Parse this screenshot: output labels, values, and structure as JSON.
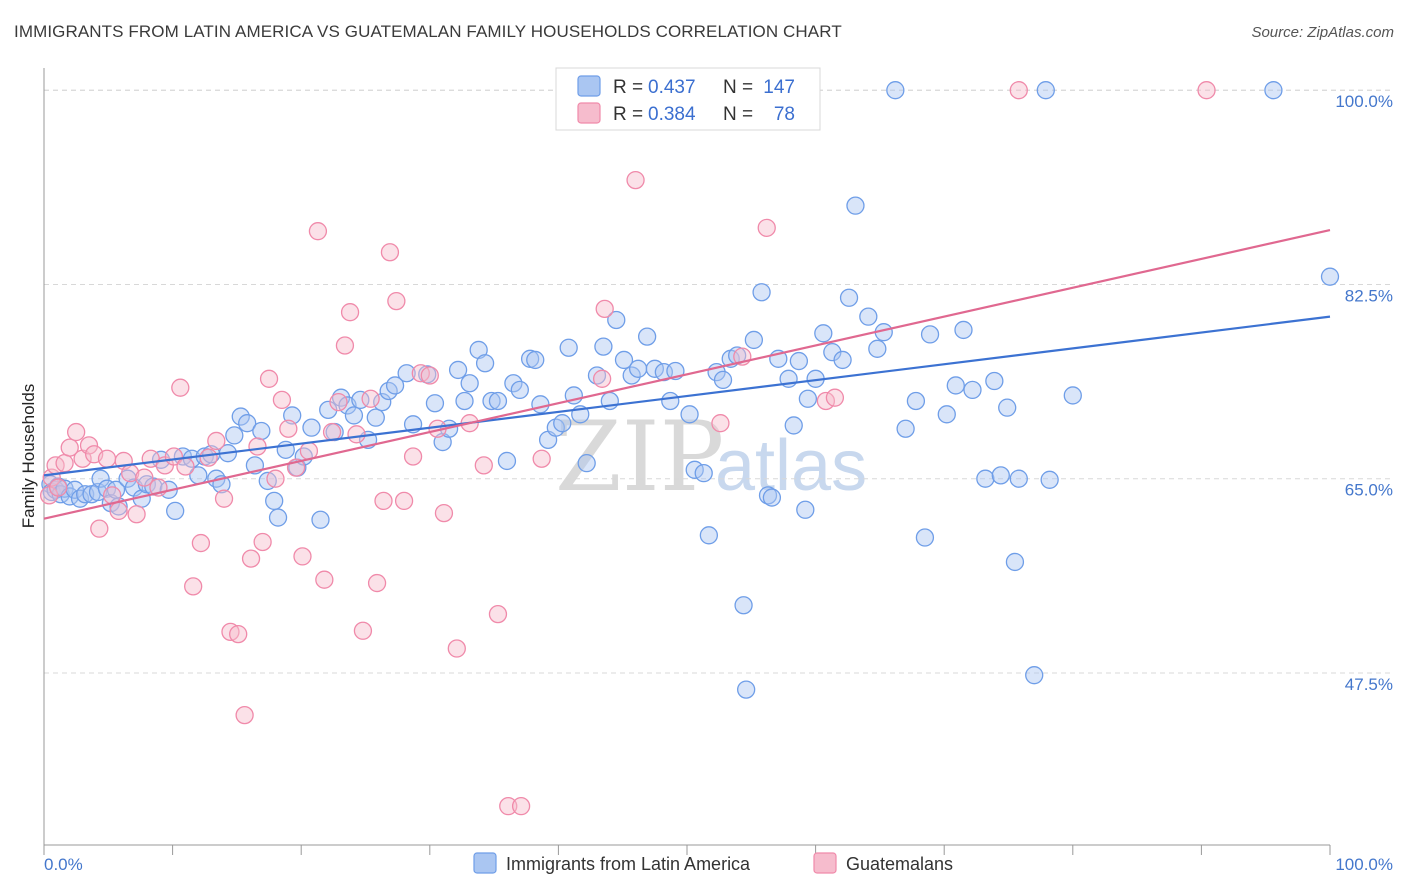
{
  "title": "IMMIGRANTS FROM LATIN AMERICA VS GUATEMALAN FAMILY HOUSEHOLDS CORRELATION CHART",
  "source": "Source: ZipAtlas.com",
  "colors": {
    "blue": "#6f9ee8",
    "blue_fill": "#aac6f2",
    "blue_line": "#3c72d2",
    "pink": "#f08aaa",
    "pink_fill": "#f6bccd",
    "pink_line": "#e06890",
    "tick_text": "#4477cc",
    "grid": "#d8d8d8"
  },
  "legend": {
    "r_label": "R =",
    "n_label": "N =",
    "rows": [
      {
        "series": "blue",
        "r": "0.437",
        "n": "147"
      },
      {
        "series": "pink",
        "r": "0.384",
        "n": "78"
      }
    ]
  },
  "watermark": {
    "zip": "ZIP",
    "atlas": "atlas"
  },
  "chart_data": {
    "type": "scatter",
    "title": "IMMIGRANTS FROM LATIN AMERICA VS GUATEMALAN FAMILY HOUSEHOLDS CORRELATION CHART",
    "xlabel": "",
    "ylabel": "Family Households",
    "xlim": [
      0,
      100
    ],
    "ylim": [
      32,
      102
    ],
    "x_tick_labels": [
      "0.0%",
      "100.0%"
    ],
    "y_ticks": [
      47.5,
      65.0,
      82.5,
      100.0
    ],
    "y_tick_labels": [
      "47.5%",
      "65.0%",
      "82.5%",
      "100.0%"
    ],
    "grid": "horizontal-dashed",
    "legend_placement": "top-center",
    "series": [
      {
        "name": "Immigrants from Latin America",
        "color": "blue",
        "r": 0.437,
        "n": 147,
        "trend": {
          "x": [
            0,
            100
          ],
          "y": [
            65.3,
            79.6
          ]
        },
        "points": [
          [
            0.5,
            64.5
          ],
          [
            0.6,
            63.8
          ],
          [
            0.9,
            64.0
          ],
          [
            1.1,
            64.3
          ],
          [
            1.3,
            63.6
          ],
          [
            1.6,
            64.1
          ],
          [
            2.0,
            63.4
          ],
          [
            2.4,
            64.0
          ],
          [
            2.8,
            63.2
          ],
          [
            3.2,
            63.6
          ],
          [
            3.7,
            63.6
          ],
          [
            4.2,
            63.8
          ],
          [
            4.4,
            65.0
          ],
          [
            4.9,
            64.1
          ],
          [
            5.2,
            62.8
          ],
          [
            5.6,
            64.0
          ],
          [
            5.8,
            62.5
          ],
          [
            6.5,
            65.0
          ],
          [
            7.0,
            64.2
          ],
          [
            7.6,
            63.2
          ],
          [
            8.0,
            64.5
          ],
          [
            8.5,
            64.3
          ],
          [
            9.1,
            66.7
          ],
          [
            9.7,
            64.0
          ],
          [
            10.2,
            62.1
          ],
          [
            10.8,
            67.0
          ],
          [
            11.5,
            66.8
          ],
          [
            12.0,
            65.3
          ],
          [
            12.5,
            67.0
          ],
          [
            13.0,
            67.2
          ],
          [
            13.4,
            65.0
          ],
          [
            13.8,
            64.5
          ],
          [
            14.3,
            67.3
          ],
          [
            14.8,
            68.9
          ],
          [
            15.3,
            70.6
          ],
          [
            15.8,
            70.0
          ],
          [
            16.4,
            66.2
          ],
          [
            16.9,
            69.3
          ],
          [
            17.4,
            64.8
          ],
          [
            17.9,
            63.0
          ],
          [
            18.2,
            61.5
          ],
          [
            18.8,
            67.6
          ],
          [
            19.3,
            70.7
          ],
          [
            19.7,
            66.0
          ],
          [
            20.2,
            67.0
          ],
          [
            20.8,
            69.6
          ],
          [
            21.5,
            61.3
          ],
          [
            22.1,
            71.2
          ],
          [
            22.6,
            69.2
          ],
          [
            23.1,
            72.3
          ],
          [
            23.6,
            71.6
          ],
          [
            24.1,
            70.7
          ],
          [
            24.6,
            72.1
          ],
          [
            25.2,
            68.5
          ],
          [
            25.8,
            70.5
          ],
          [
            26.3,
            71.9
          ],
          [
            26.8,
            72.9
          ],
          [
            27.3,
            73.4
          ],
          [
            28.2,
            74.5
          ],
          [
            28.7,
            69.9
          ],
          [
            29.8,
            74.4
          ],
          [
            30.4,
            71.8
          ],
          [
            31.0,
            68.3
          ],
          [
            31.5,
            69.5
          ],
          [
            32.2,
            74.8
          ],
          [
            32.7,
            72.0
          ],
          [
            33.1,
            73.6
          ],
          [
            33.8,
            76.6
          ],
          [
            34.3,
            75.4
          ],
          [
            34.8,
            72.0
          ],
          [
            35.3,
            72.0
          ],
          [
            36.0,
            66.6
          ],
          [
            36.5,
            73.6
          ],
          [
            37.0,
            73.0
          ],
          [
            37.8,
            75.8
          ],
          [
            38.2,
            75.7
          ],
          [
            38.6,
            71.7
          ],
          [
            39.2,
            68.5
          ],
          [
            39.8,
            69.6
          ],
          [
            40.3,
            70.0
          ],
          [
            40.8,
            76.8
          ],
          [
            41.2,
            72.5
          ],
          [
            41.7,
            70.8
          ],
          [
            42.2,
            66.4
          ],
          [
            43.0,
            74.3
          ],
          [
            43.5,
            76.9
          ],
          [
            44.0,
            72.0
          ],
          [
            44.5,
            79.3
          ],
          [
            45.1,
            75.7
          ],
          [
            45.7,
            74.3
          ],
          [
            46.2,
            74.9
          ],
          [
            46.9,
            77.8
          ],
          [
            47.5,
            74.9
          ],
          [
            48.2,
            74.6
          ],
          [
            48.7,
            72.0
          ],
          [
            49.1,
            74.7
          ],
          [
            50.2,
            70.8
          ],
          [
            50.6,
            65.8
          ],
          [
            51.3,
            65.5
          ],
          [
            51.7,
            59.9
          ],
          [
            52.3,
            74.6
          ],
          [
            52.8,
            73.9
          ],
          [
            53.4,
            75.8
          ],
          [
            53.9,
            76.1
          ],
          [
            54.4,
            53.6
          ],
          [
            54.6,
            46.0
          ],
          [
            55.2,
            77.5
          ],
          [
            55.8,
            81.8
          ],
          [
            56.3,
            63.5
          ],
          [
            56.6,
            63.3
          ],
          [
            57.1,
            75.8
          ],
          [
            57.9,
            74.0
          ],
          [
            58.3,
            69.8
          ],
          [
            58.7,
            75.6
          ],
          [
            59.2,
            62.2
          ],
          [
            59.4,
            72.2
          ],
          [
            60.0,
            74.0
          ],
          [
            60.6,
            78.1
          ],
          [
            61.3,
            76.4
          ],
          [
            62.1,
            75.7
          ],
          [
            62.6,
            81.3
          ],
          [
            63.1,
            89.6
          ],
          [
            64.1,
            79.6
          ],
          [
            64.8,
            76.7
          ],
          [
            65.3,
            78.2
          ],
          [
            66.2,
            100.0
          ],
          [
            67.0,
            69.5
          ],
          [
            67.8,
            72.0
          ],
          [
            68.5,
            59.7
          ],
          [
            68.9,
            78.0
          ],
          [
            70.2,
            70.8
          ],
          [
            70.9,
            73.4
          ],
          [
            71.5,
            78.4
          ],
          [
            72.2,
            73.0
          ],
          [
            73.2,
            65.0
          ],
          [
            73.9,
            73.8
          ],
          [
            74.4,
            65.3
          ],
          [
            74.9,
            71.4
          ],
          [
            75.5,
            57.5
          ],
          [
            75.8,
            65.0
          ],
          [
            77.0,
            47.3
          ],
          [
            77.9,
            100.0
          ],
          [
            78.2,
            64.9
          ],
          [
            80.0,
            72.5
          ],
          [
            95.6,
            100.0
          ],
          [
            100.0,
            83.2
          ]
        ]
      },
      {
        "name": "Guatemalans",
        "color": "pink",
        "r": 0.384,
        "n": 78,
        "trend": {
          "x": [
            0,
            100
          ],
          "y": [
            61.4,
            87.4
          ]
        },
        "points": [
          [
            0.4,
            63.5
          ],
          [
            0.6,
            65.1
          ],
          [
            0.9,
            66.2
          ],
          [
            1.1,
            64.2
          ],
          [
            1.6,
            66.4
          ],
          [
            2.0,
            67.8
          ],
          [
            2.5,
            69.2
          ],
          [
            3.0,
            66.8
          ],
          [
            3.5,
            68.0
          ],
          [
            3.9,
            67.2
          ],
          [
            4.3,
            60.5
          ],
          [
            4.9,
            66.8
          ],
          [
            5.3,
            63.5
          ],
          [
            5.8,
            62.1
          ],
          [
            6.2,
            66.6
          ],
          [
            6.7,
            65.5
          ],
          [
            7.2,
            61.8
          ],
          [
            7.8,
            65.1
          ],
          [
            8.3,
            66.8
          ],
          [
            8.9,
            64.2
          ],
          [
            9.4,
            66.2
          ],
          [
            10.1,
            67.0
          ],
          [
            10.6,
            73.2
          ],
          [
            11.0,
            66.1
          ],
          [
            11.6,
            55.3
          ],
          [
            12.2,
            59.2
          ],
          [
            12.8,
            66.9
          ],
          [
            13.4,
            68.4
          ],
          [
            14.0,
            63.2
          ],
          [
            14.5,
            51.2
          ],
          [
            15.1,
            51.0
          ],
          [
            15.6,
            43.7
          ],
          [
            16.1,
            57.8
          ],
          [
            16.6,
            67.9
          ],
          [
            17.0,
            59.3
          ],
          [
            17.5,
            74.0
          ],
          [
            18.0,
            65.0
          ],
          [
            18.5,
            72.1
          ],
          [
            19.0,
            69.5
          ],
          [
            19.6,
            66.0
          ],
          [
            20.1,
            58.0
          ],
          [
            20.6,
            67.5
          ],
          [
            21.3,
            87.3
          ],
          [
            21.8,
            55.9
          ],
          [
            22.4,
            69.2
          ],
          [
            22.9,
            71.9
          ],
          [
            23.4,
            77.0
          ],
          [
            23.8,
            80.0
          ],
          [
            24.3,
            69.0
          ],
          [
            24.8,
            51.3
          ],
          [
            25.4,
            72.2
          ],
          [
            25.9,
            55.6
          ],
          [
            26.4,
            63.0
          ],
          [
            26.9,
            85.4
          ],
          [
            27.4,
            81.0
          ],
          [
            28.0,
            63.0
          ],
          [
            28.7,
            67.0
          ],
          [
            29.3,
            74.5
          ],
          [
            30.0,
            74.3
          ],
          [
            30.6,
            69.5
          ],
          [
            31.1,
            61.9
          ],
          [
            32.1,
            49.7
          ],
          [
            33.1,
            70.0
          ],
          [
            34.2,
            66.2
          ],
          [
            35.3,
            52.8
          ],
          [
            36.1,
            35.5
          ],
          [
            37.1,
            35.5
          ],
          [
            38.7,
            66.8
          ],
          [
            43.4,
            74.0
          ],
          [
            43.6,
            80.3
          ],
          [
            46.0,
            91.9
          ],
          [
            52.6,
            70.0
          ],
          [
            54.3,
            76.0
          ],
          [
            56.2,
            87.6
          ],
          [
            60.8,
            72.0
          ],
          [
            61.5,
            72.3
          ],
          [
            75.8,
            100.0
          ],
          [
            90.4,
            100.0
          ]
        ]
      }
    ]
  }
}
